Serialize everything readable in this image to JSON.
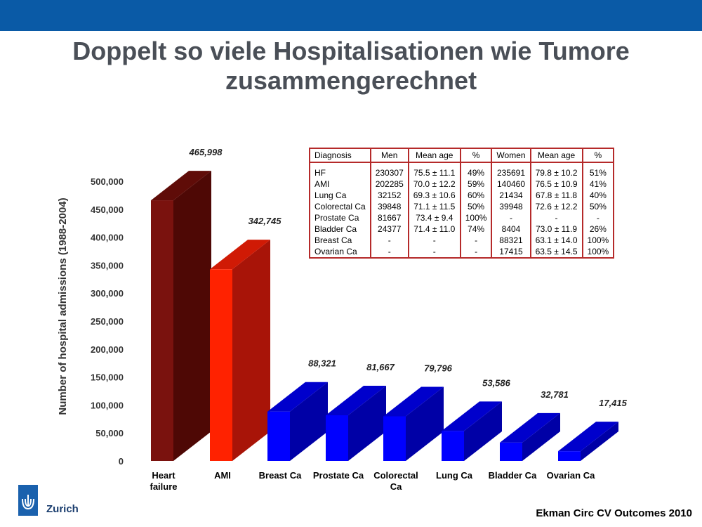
{
  "slide": {
    "title_line1": "Doppelt so viele Hospitalisationen wie Tumore",
    "title_line2": "zusammengerechnet",
    "logo_text": "Zurich",
    "source": "Ekman Circ CV Outcomes 2010"
  },
  "chart_data": {
    "type": "bar",
    "ylabel": "Number of hospital admissions (1988-2004)",
    "ylim": [
      0,
      500000
    ],
    "yticks": [
      0,
      50000,
      100000,
      150000,
      200000,
      250000,
      300000,
      350000,
      400000,
      450000,
      500000
    ],
    "ytick_labels": [
      "0",
      "50,000",
      "100,000",
      "150,000",
      "200,000",
      "250,000",
      "300,000",
      "350,000",
      "400,000",
      "450,000",
      "500,000"
    ],
    "categories": [
      [
        "Heart",
        "failure"
      ],
      [
        "AMI"
      ],
      [
        "Breast Ca"
      ],
      [
        "Prostate Ca"
      ],
      [
        "Colorectal",
        "Ca"
      ],
      [
        "Lung Ca"
      ],
      [
        "Bladder Ca"
      ],
      [
        "Ovarian Ca"
      ]
    ],
    "values": [
      465998,
      342745,
      88321,
      81667,
      79796,
      53586,
      32781,
      17415
    ],
    "value_labels": [
      "465,998",
      "342,745",
      "88,321",
      "81,667",
      "79,796",
      "53,586",
      "32,781",
      "17,415"
    ],
    "colors": {
      "heart_front": "#7a120e",
      "heart_side": "#4e0805",
      "heart_top": "#5f0c08",
      "ami_front": "#ff2200",
      "ami_side": "#a81408",
      "ami_top": "#d01a05",
      "cancer_front": "#0000ff",
      "cancer_side": "#0000a6",
      "cancer_top": "#0000cc"
    },
    "bar_color_groups": [
      "heart",
      "ami",
      "cancer",
      "cancer",
      "cancer",
      "cancer",
      "cancer",
      "cancer"
    ]
  },
  "table": {
    "headers": [
      "Diagnosis",
      "Men",
      "Mean age",
      "%",
      "Women",
      "Mean age",
      "%"
    ],
    "rows": [
      [
        "HF",
        "230307",
        "75.5 ± 11.1",
        "49%",
        "235691",
        "79.8 ± 10.2",
        "51%"
      ],
      [
        "AMI",
        "202285",
        "70.0 ± 12.2",
        "59%",
        "140460",
        "76.5 ± 10.9",
        "41%"
      ],
      [
        "Lung Ca",
        "32152",
        "69.3 ± 10.6",
        "60%",
        "21434",
        "67.8 ± 11.8",
        "40%"
      ],
      [
        "Colorectal Ca",
        "39848",
        "71.1 ± 11.5",
        "50%",
        "39948",
        "72.6 ± 12.2",
        "50%"
      ],
      [
        "Prostate Ca",
        "81667",
        "73.4 ± 9.4",
        "100%",
        "-",
        "-",
        "-"
      ],
      [
        "Bladder Ca",
        "24377",
        "71.4 ± 11.0",
        "74%",
        "8404",
        "73.0 ± 11.9",
        "26%"
      ],
      [
        "Breast Ca",
        "-",
        "-",
        "-",
        "88321",
        "63.1 ± 14.0",
        "100%"
      ],
      [
        "Ovarian Ca",
        "-",
        "-",
        "-",
        "17415",
        "63.5 ± 14.5",
        "100%"
      ]
    ]
  }
}
